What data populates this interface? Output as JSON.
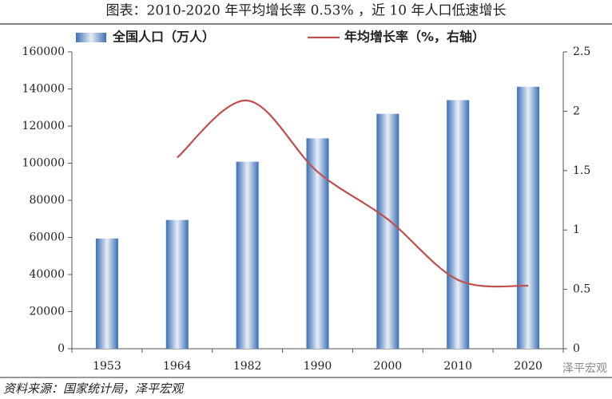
{
  "chart_data": {
    "type": "bar-line",
    "title": "图表：2010-2020 年平均增长率 0.53% ，近 10 年人口低速增长",
    "source": "资料来源：国家统计局，泽平宏观",
    "watermark": "泽平宏观",
    "categories": [
      "1953",
      "1964",
      "1982",
      "1990",
      "2000",
      "2010",
      "2020"
    ],
    "series": [
      {
        "name": "全国人口（万人）",
        "type": "bar",
        "color": "#3a6fb5",
        "values": [
          59400,
          69400,
          100800,
          113400,
          126600,
          134000,
          141200
        ]
      },
      {
        "name": "年均增长率（%，右轴）",
        "type": "line",
        "axis": "y2",
        "color": "#c0504d",
        "values": [
          null,
          1.61,
          2.09,
          1.49,
          1.09,
          0.58,
          0.53
        ]
      }
    ],
    "ylim": [
      0,
      160000
    ],
    "yticks": [
      0,
      20000,
      40000,
      60000,
      80000,
      100000,
      120000,
      140000,
      160000
    ],
    "y2lim": [
      0,
      2.5
    ],
    "y2ticks": [
      0,
      0.5,
      1,
      1.5,
      2,
      2.5
    ]
  }
}
